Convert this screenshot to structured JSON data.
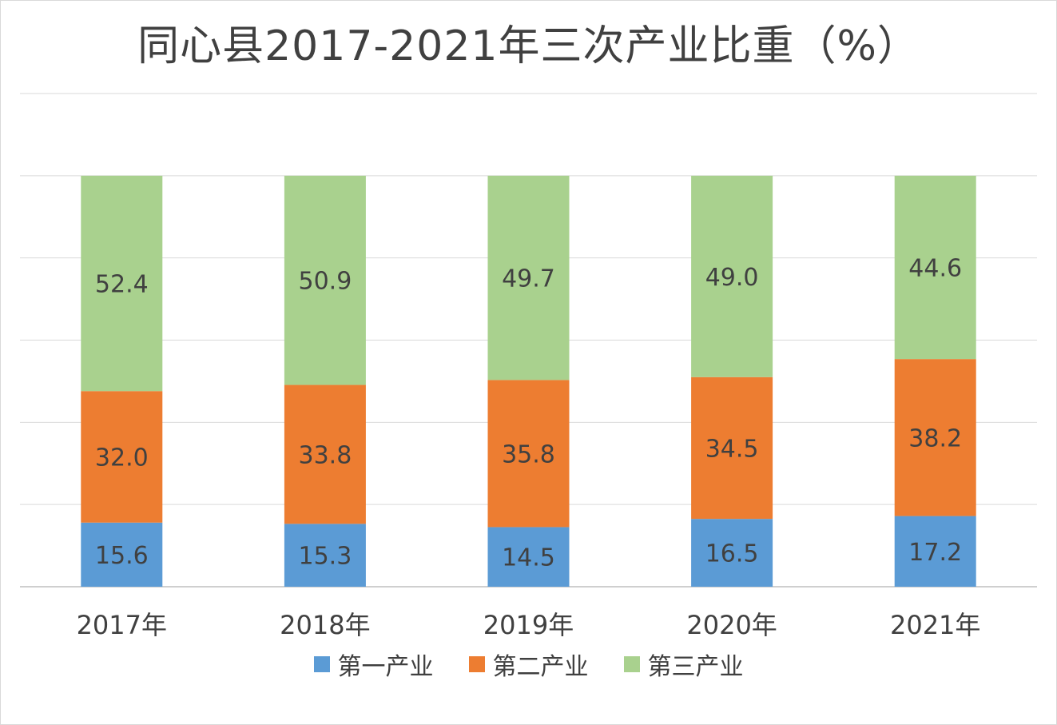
{
  "chart_data": {
    "type": "bar",
    "stacked": true,
    "title": "同心县2017-2021年三次产业比重（%）",
    "categories": [
      "2017年",
      "2018年",
      "2019年",
      "2020年",
      "2021年"
    ],
    "series": [
      {
        "name": "第一产业",
        "color": "#5b9bd5",
        "values": [
          15.6,
          15.3,
          14.5,
          16.5,
          17.2
        ]
      },
      {
        "name": "第二产业",
        "color": "#ed7d31",
        "values": [
          32.0,
          33.8,
          35.8,
          34.5,
          38.2
        ]
      },
      {
        "name": "第三产业",
        "color": "#a9d18e",
        "values": [
          52.4,
          50.9,
          49.7,
          49.0,
          44.6
        ]
      }
    ],
    "ylim": [
      0,
      120
    ],
    "grid": true,
    "legend_position": "bottom",
    "data_labels": true,
    "value_axis_visible": false
  }
}
